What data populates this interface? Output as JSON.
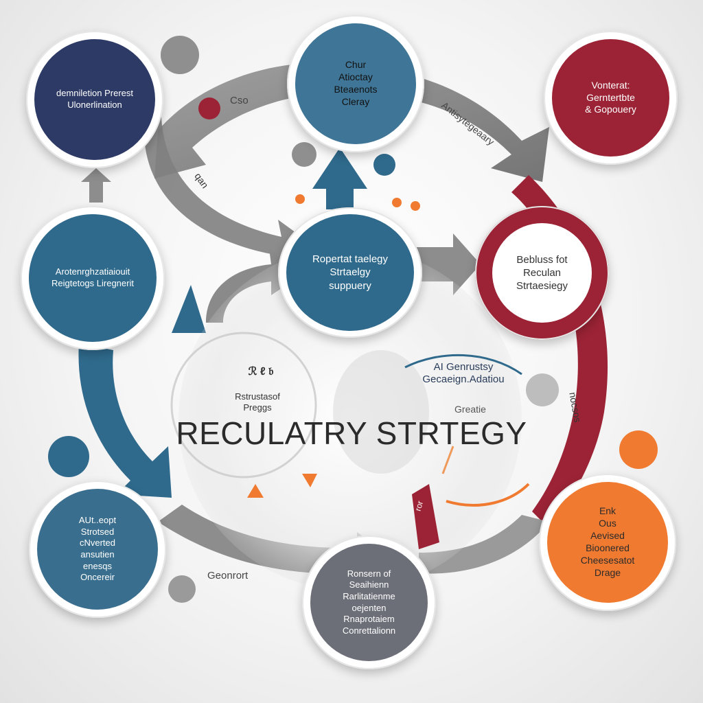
{
  "center": {
    "title": "RECULATRY STRTEGY",
    "badge": "ℛ ℓ 𝔟",
    "left_caption": [
      "Rstrustasof",
      "Preggs"
    ],
    "right_caption": [
      "AI Genrustsy",
      "Gecaeign.Adatiou"
    ],
    "right_sub": "Greatie"
  },
  "nodes": [
    {
      "id": "top-left",
      "lines": [
        "demniletion Prerest",
        "Ulonerlination"
      ],
      "color": "#2d3a66",
      "text_color": "#ffffff"
    },
    {
      "id": "top-center",
      "lines": [
        "Chur",
        "Atioctay",
        "Bteaenots",
        "Cleray"
      ],
      "color": "#3f7596",
      "text_color": "#111111"
    },
    {
      "id": "top-right",
      "lines": [
        "Vonterat:",
        "Gerntertbte",
        "& Gopouery"
      ],
      "color": "#9b2335",
      "text_color": "#ffffff"
    },
    {
      "id": "mid-left",
      "lines": [
        "Arotenrghzatiaiouit",
        "Reigtetogs Liregnerit"
      ],
      "color": "#2f6a8c",
      "text_color": "#ffffff"
    },
    {
      "id": "center",
      "lines": [
        "Ropertat taelegy",
        "Strtaelgy",
        "suppuery"
      ],
      "color": "#2f6a8c",
      "text_color": "#ffffff"
    },
    {
      "id": "mid-right",
      "lines": [
        "Bebluss fot",
        "Reculan",
        "Strtaesiegy"
      ],
      "color": "#9b2335",
      "text_color": "#333333"
    },
    {
      "id": "bottom-left",
      "lines": [
        "AUt..eopt",
        "Strotsed",
        "cNverted",
        "ansutien",
        "enesqs",
        "Oncereir"
      ],
      "color": "#3a6e8e",
      "text_color": "#ffffff"
    },
    {
      "id": "bottom-center",
      "lines": [
        "Ronsern of",
        "Seaihienn",
        "Rarlitatienme",
        "oejenten",
        "Rnaprotaiem",
        "Conrettalionn"
      ],
      "color": "#6c6f78",
      "text_color": "#ffffff"
    },
    {
      "id": "bottom-right",
      "lines": [
        "Enk",
        "Ous",
        "Aevised",
        "Bioonered",
        "Cheesesatot",
        "Drage"
      ],
      "color": "#ef7a30",
      "text_color": "#2b2b2b"
    }
  ],
  "arrow_labels": {
    "top_left_arrow": "Cso",
    "top_right_arrow": "Antisytegeaary",
    "left_arrow": "qan",
    "right_arrow": "nocsos",
    "bottom_arrow": "Geonrort",
    "bottom_right_small": "ror"
  },
  "colors": {
    "navy": "#2d3a66",
    "steel_blue": "#2f6a8c",
    "crimson": "#9b2335",
    "orange": "#ef7a30",
    "slate": "#6c6f78",
    "arrow_gray": "#8d8d8d"
  }
}
